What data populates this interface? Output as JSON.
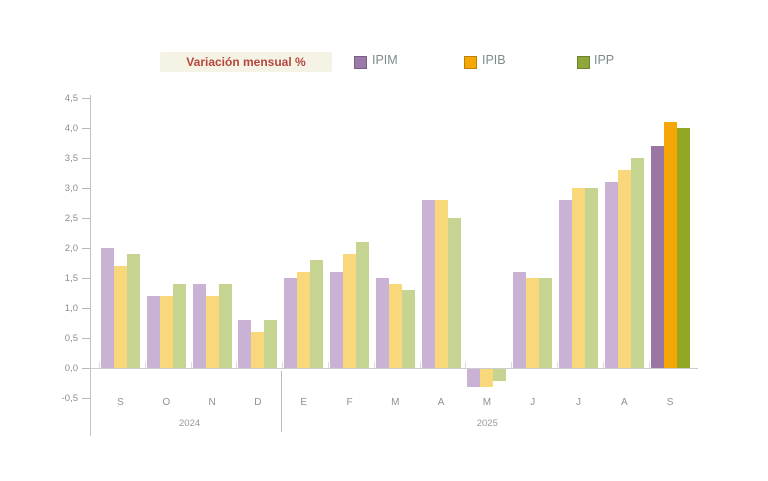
{
  "legend": {
    "title": "Variación mensual %",
    "items": [
      {
        "name": "IPIM",
        "color": "#9b79a8"
      },
      {
        "name": "IPIB",
        "color": "#f4a705"
      },
      {
        "name": "IPP",
        "color": "#8fa63b"
      }
    ]
  },
  "chart_data": {
    "type": "bar",
    "title": "Variación mensual %",
    "categories": [
      "S",
      "O",
      "N",
      "D",
      "E",
      "F",
      "M",
      "A",
      "M",
      "J",
      "J",
      "A",
      "S"
    ],
    "year_groups": [
      {
        "label": "2024",
        "from": 0,
        "to": 3
      },
      {
        "label": "2025",
        "from": 4,
        "to": 12
      }
    ],
    "series": [
      {
        "name": "IPIM",
        "color": "#c9b2d4",
        "highlight_color": "#9a76a4",
        "values": [
          2.0,
          1.2,
          1.4,
          0.8,
          1.5,
          1.6,
          1.5,
          2.8,
          -0.3,
          1.6,
          2.8,
          3.1,
          3.7
        ]
      },
      {
        "name": "IPIB",
        "color": "#f8d87b",
        "highlight_color": "#f4a705",
        "values": [
          1.7,
          1.2,
          1.2,
          0.6,
          1.6,
          1.9,
          1.4,
          2.8,
          -0.3,
          1.5,
          3.0,
          3.3,
          4.1
        ]
      },
      {
        "name": "IPP",
        "color": "#c6d492",
        "highlight_color": "#93a722",
        "values": [
          1.9,
          1.4,
          1.4,
          0.8,
          1.8,
          2.1,
          1.3,
          2.5,
          -0.2,
          1.5,
          3.0,
          3.5,
          4.0
        ]
      }
    ],
    "highlight_index": 12,
    "ylim": [
      -0.5,
      4.5
    ],
    "y_ticks": [
      {
        "value": 4.5,
        "label": "4,5"
      },
      {
        "value": 4.0,
        "label": "4,0"
      },
      {
        "value": 3.5,
        "label": "3,5"
      },
      {
        "value": 3.0,
        "label": "3,0"
      },
      {
        "value": 2.5,
        "label": "2,5"
      },
      {
        "value": 2.0,
        "label": "2,0"
      },
      {
        "value": 1.5,
        "label": "1,5"
      },
      {
        "value": 1.0,
        "label": "1,0"
      },
      {
        "value": 0.5,
        "label": "0,5"
      },
      {
        "value": 0.0,
        "label": "0,0"
      },
      {
        "value": -0.5,
        "label": "-0,5"
      }
    ],
    "grid": false,
    "legend_position": "top",
    "xlabel": "",
    "ylabel": ""
  }
}
